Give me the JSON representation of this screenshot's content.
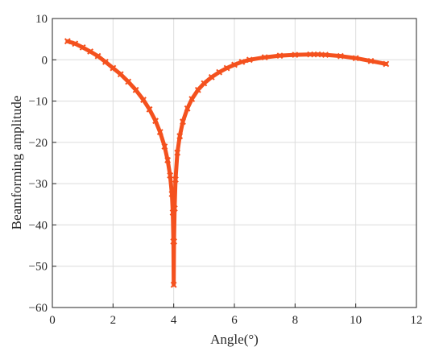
{
  "chart_data": {
    "type": "line",
    "title": "",
    "xlabel": "Angle(°)",
    "ylabel": "Beamforming amplitude",
    "xlim": [
      0,
      12
    ],
    "ylim": [
      -60,
      10
    ],
    "xticks": [
      0,
      2,
      4,
      6,
      8,
      10,
      12
    ],
    "yticks": [
      10,
      0,
      -10,
      -20,
      -30,
      -40,
      -50,
      -60
    ],
    "grid": true,
    "legend": "none",
    "series": [
      {
        "color": "#f4511e",
        "marker": "x",
        "x": [
          0.5,
          0.75,
          1.0,
          1.25,
          1.5,
          1.75,
          2.0,
          2.25,
          2.5,
          2.75,
          3.0,
          3.2,
          3.4,
          3.55,
          3.7,
          3.8,
          3.88,
          3.94,
          3.97,
          3.99,
          4.0,
          4.01,
          4.03,
          4.06,
          4.12,
          4.2,
          4.3,
          4.45,
          4.6,
          4.8,
          5.0,
          5.25,
          5.5,
          5.75,
          6.0,
          6.25,
          6.5,
          7.0,
          7.5,
          8.0,
          8.5,
          8.75,
          9.0,
          9.5,
          10.0,
          10.5,
          11.0
        ],
        "y": [
          4.5,
          3.9,
          3.0,
          2.0,
          0.9,
          -0.5,
          -2.0,
          -3.5,
          -5.3,
          -7.3,
          -9.7,
          -12.0,
          -14.8,
          -17.5,
          -21.0,
          -24.3,
          -28.0,
          -32.5,
          -37.0,
          -44.0,
          -54.5,
          -44.0,
          -36.0,
          -29.0,
          -22.5,
          -18.5,
          -15.0,
          -11.8,
          -9.5,
          -7.3,
          -5.7,
          -4.2,
          -3.0,
          -2.0,
          -1.2,
          -0.5,
          0.0,
          0.6,
          1.0,
          1.2,
          1.3,
          1.3,
          1.2,
          0.9,
          0.4,
          -0.3,
          -1.0
        ]
      }
    ]
  }
}
